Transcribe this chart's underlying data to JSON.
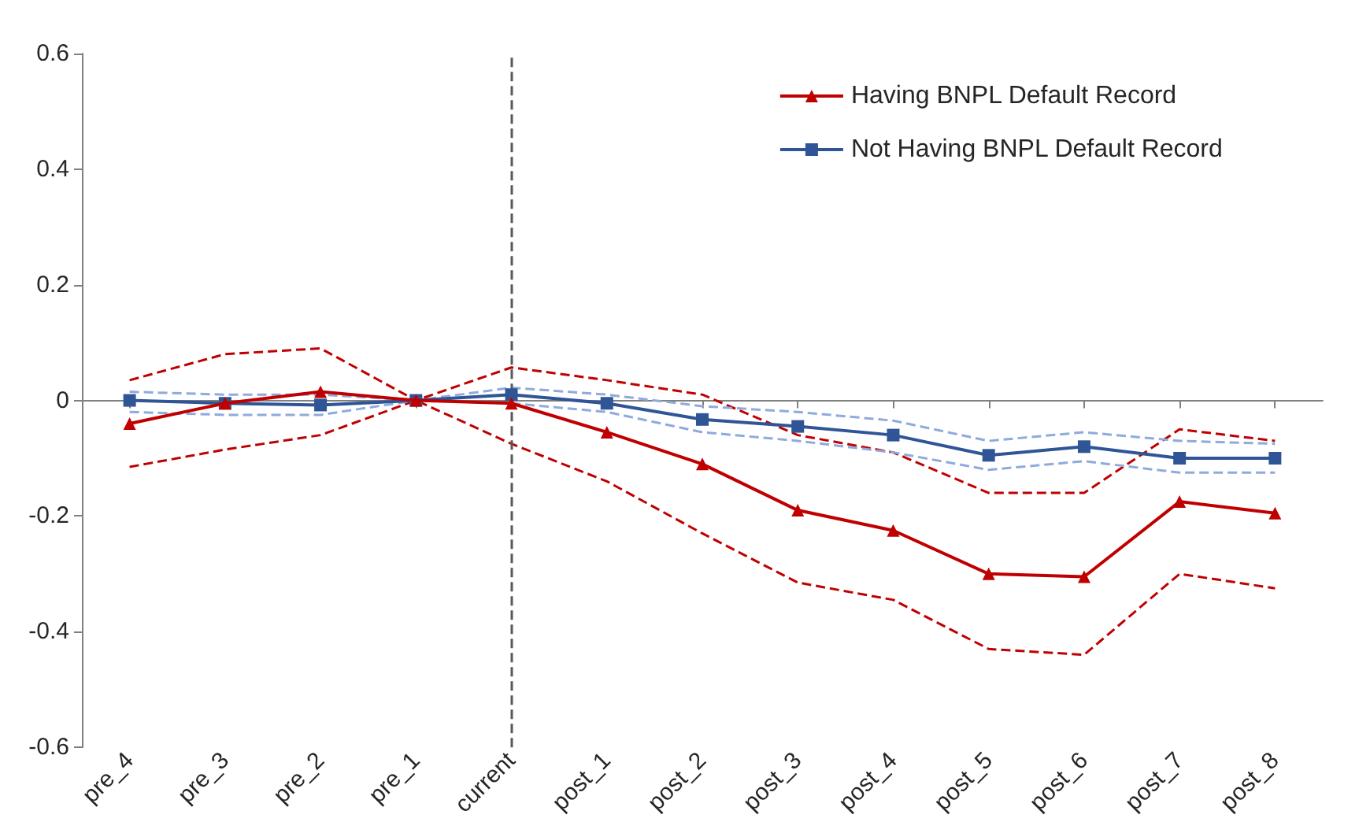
{
  "chart_data": {
    "type": "line",
    "categories": [
      "pre_4",
      "pre_3",
      "pre_2",
      "pre_1",
      "current",
      "post_1",
      "post_2",
      "post_3",
      "post_4",
      "post_5",
      "post_6",
      "post_7",
      "post_8"
    ],
    "series": [
      {
        "name": "Having BNPL Default Record",
        "color": "#c00000",
        "marker": "triangle",
        "values": [
          -0.04,
          -0.005,
          0.015,
          0,
          -0.005,
          -0.055,
          -0.11,
          -0.19,
          -0.225,
          -0.3,
          -0.305,
          -0.175,
          -0.195
        ]
      },
      {
        "name": "Not Having BNPL Default Record",
        "color": "#2f5597",
        "marker": "square",
        "values": [
          0,
          -0.005,
          -0.008,
          0,
          0.01,
          -0.005,
          -0.033,
          -0.045,
          -0.06,
          -0.095,
          -0.08,
          -0.1,
          -0.1
        ]
      },
      {
        "color": "#c00000",
        "line_style": "dashed",
        "marker": "none",
        "values": [
          -0.115,
          -0.085,
          -0.06,
          0,
          -0.075,
          -0.14,
          -0.23,
          -0.315,
          -0.345,
          -0.43,
          -0.44,
          -0.3,
          -0.325
        ]
      },
      {
        "color": "#c00000",
        "line_style": "dashed",
        "marker": "none",
        "values": [
          0.035,
          0.08,
          0.09,
          0,
          0.057,
          0.035,
          0.01,
          -0.06,
          -0.09,
          -0.16,
          -0.16,
          -0.05,
          -0.07
        ]
      },
      {
        "color": "#8faadc",
        "line_style": "dashed",
        "marker": "none",
        "values": [
          -0.02,
          -0.025,
          -0.025,
          0,
          -0.005,
          -0.02,
          -0.055,
          -0.07,
          -0.09,
          -0.12,
          -0.105,
          -0.125,
          -0.125
        ]
      },
      {
        "color": "#8faadc",
        "line_style": "dashed",
        "marker": "none",
        "values": [
          0.015,
          0.01,
          0.01,
          0,
          0.022,
          0.01,
          -0.01,
          -0.02,
          -0.035,
          -0.07,
          -0.055,
          -0.07,
          -0.075
        ]
      }
    ],
    "ylim": [
      -0.6,
      0.6
    ],
    "yticks": [
      -0.6,
      -0.4,
      -0.2,
      0,
      0.2,
      0.4,
      0.6
    ],
    "grid": false,
    "legend": "top right",
    "ref_lines": [
      {
        "axis": "x",
        "value": "current",
        "color": "#595959",
        "line_style": "dashed"
      }
    ]
  }
}
